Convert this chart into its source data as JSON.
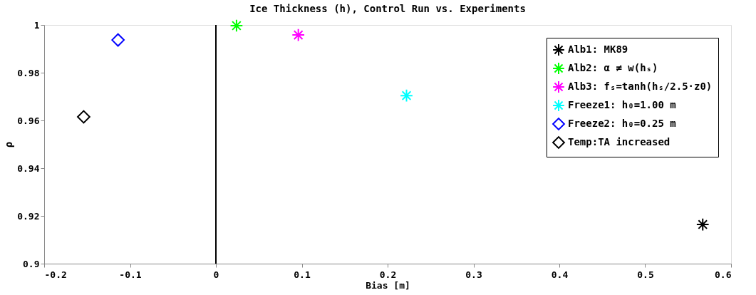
{
  "chart_data": {
    "type": "scatter",
    "title": "Ice Thickness (h), Control Run vs. Experiments",
    "xlabel": "Bias [m]",
    "ylabel": "ρ",
    "xlim": [
      -0.2,
      0.6
    ],
    "xticks": [
      -0.2,
      -0.1,
      0,
      0.1,
      0.2,
      0.3,
      0.4,
      0.5,
      0.6
    ],
    "ylim": [
      0.9,
      1
    ],
    "yticks": [
      0.9,
      0.92,
      0.94,
      0.96,
      0.98,
      1
    ],
    "grid": false,
    "legend": "top right",
    "ref_lines": [
      {
        "axis": "x",
        "value": 0,
        "color": "#000000",
        "line_style": "solid"
      }
    ],
    "series": [
      {
        "name": "Alb1: MK89",
        "color": "#000000",
        "marker": "cross",
        "x": [
          0.567
        ],
        "values": [
          0.9164
        ]
      },
      {
        "name": "Alb2: α ≠ w(hₛ)",
        "color": "#00ff00",
        "marker": "cross",
        "x": [
          0.024
        ],
        "values": [
          0.9997
        ]
      },
      {
        "name": "Alb3: fₛ=tanh(hₛ/2.5·z0)",
        "color": "#ff00ff",
        "marker": "cross",
        "x": [
          0.096
        ],
        "values": [
          0.9958
        ]
      },
      {
        "name": "Freeze1: h₀=1.00 m",
        "color": "#00ffff",
        "marker": "cross",
        "x": [
          0.222
        ],
        "values": [
          0.9704
        ]
      },
      {
        "name": "Freeze2: h₀=0.25 m",
        "color": "#0000ff",
        "marker": "diamond",
        "x": [
          -0.114
        ],
        "values": [
          0.9937
        ]
      },
      {
        "name": "Temp:TA increased",
        "color": "#000000",
        "marker": "diamond",
        "x": [
          -0.154
        ],
        "values": [
          0.9615
        ]
      }
    ]
  }
}
